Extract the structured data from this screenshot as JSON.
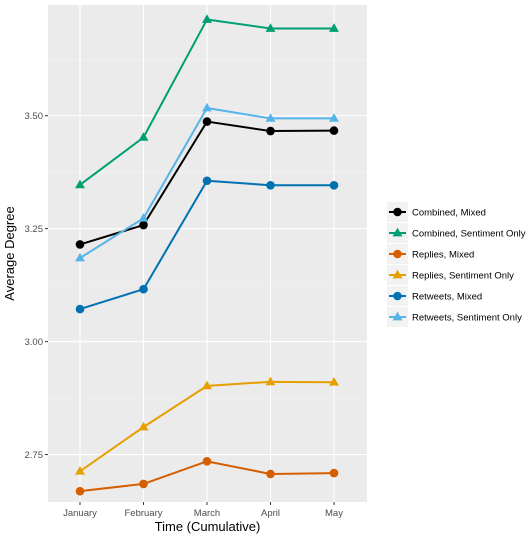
{
  "chart_data": {
    "type": "line",
    "xlabel": "Time (Cumulative)",
    "ylabel": "Average Degree",
    "categories": [
      "January",
      "February",
      "March",
      "April",
      "May"
    ],
    "ylim": [
      2.645,
      3.745
    ],
    "yticks": [
      2.75,
      3.0,
      3.25,
      3.5
    ],
    "ytick_labels": [
      "2.75",
      "3.00",
      "3.25",
      "3.50"
    ],
    "grid": true,
    "legend_position": "right",
    "series": [
      {
        "name": "Combined, Mixed",
        "color": "#000000",
        "marker": "circle",
        "values": [
          3.215,
          3.258,
          3.487,
          3.466,
          3.467
        ]
      },
      {
        "name": "Combined, Sentiment Only",
        "color": "#009E73",
        "marker": "triangle",
        "values": [
          3.347,
          3.452,
          3.713,
          3.693,
          3.693
        ]
      },
      {
        "name": "Replies, Mixed",
        "color": "#D55E00",
        "marker": "circle",
        "values": [
          2.669,
          2.685,
          2.735,
          2.707,
          2.709
        ]
      },
      {
        "name": "Replies, Sentiment Only",
        "color": "#E69F00",
        "marker": "triangle",
        "values": [
          2.713,
          2.811,
          2.902,
          2.911,
          2.91
        ]
      },
      {
        "name": "Retweets, Mixed",
        "color": "#0072B2",
        "marker": "circle",
        "values": [
          3.072,
          3.116,
          3.356,
          3.346,
          3.346
        ]
      },
      {
        "name": "Retweets, Sentiment Only",
        "color": "#56B4E9",
        "marker": "triangle",
        "values": [
          3.185,
          3.273,
          3.517,
          3.494,
          3.494
        ]
      }
    ]
  }
}
